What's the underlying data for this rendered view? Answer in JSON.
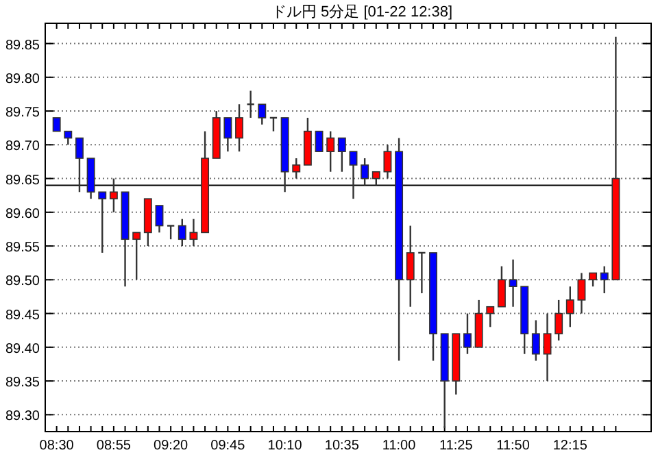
{
  "chart_data": {
    "type": "candlestick",
    "title": "ドル円 5分足 [01-22 12:38]",
    "categories": [
      "08:30",
      null,
      null,
      null,
      null,
      "08:55",
      null,
      null,
      null,
      null,
      "09:20",
      null,
      null,
      null,
      null,
      "09:45",
      null,
      null,
      null,
      null,
      "10:10",
      null,
      null,
      null,
      null,
      "10:35",
      null,
      null,
      null,
      null,
      "11:00",
      null,
      null,
      null,
      null,
      "11:25",
      null,
      null,
      null,
      null,
      "11:50",
      null,
      null,
      null,
      null,
      "12:15",
      null,
      null,
      null,
      null
    ],
    "ohlc": [
      [
        89.74,
        89.74,
        89.72,
        89.72
      ],
      [
        89.72,
        89.72,
        89.7,
        89.71
      ],
      [
        89.71,
        89.71,
        89.63,
        89.68
      ],
      [
        89.68,
        89.68,
        89.62,
        89.63
      ],
      [
        89.63,
        89.63,
        89.54,
        89.62
      ],
      [
        89.62,
        89.65,
        89.6,
        89.63
      ],
      [
        89.63,
        89.63,
        89.49,
        89.56
      ],
      [
        89.56,
        89.57,
        89.5,
        89.57
      ],
      [
        89.57,
        89.62,
        89.55,
        89.62
      ],
      [
        89.61,
        89.61,
        89.57,
        89.58
      ],
      [
        89.58,
        89.58,
        89.56,
        89.58
      ],
      [
        89.58,
        89.59,
        89.55,
        89.56
      ],
      [
        89.56,
        89.59,
        89.55,
        89.57
      ],
      [
        89.57,
        89.72,
        89.57,
        89.68
      ],
      [
        89.68,
        89.75,
        89.68,
        89.74
      ],
      [
        89.74,
        89.74,
        89.69,
        89.71
      ],
      [
        89.71,
        89.76,
        89.69,
        89.74
      ],
      [
        89.76,
        89.78,
        89.74,
        89.76
      ],
      [
        89.76,
        89.76,
        89.73,
        89.74
      ],
      [
        89.74,
        89.74,
        89.72,
        89.74
      ],
      [
        89.74,
        89.74,
        89.63,
        89.66
      ],
      [
        89.66,
        89.68,
        89.65,
        89.67
      ],
      [
        89.67,
        89.74,
        89.67,
        89.72
      ],
      [
        89.72,
        89.72,
        89.69,
        89.69
      ],
      [
        89.69,
        89.72,
        89.66,
        89.71
      ],
      [
        89.71,
        89.71,
        89.66,
        89.69
      ],
      [
        89.69,
        89.69,
        89.62,
        89.67
      ],
      [
        89.67,
        89.68,
        89.64,
        89.65
      ],
      [
        89.65,
        89.66,
        89.64,
        89.66
      ],
      [
        89.66,
        89.7,
        89.65,
        89.69
      ],
      [
        89.69,
        89.71,
        89.38,
        89.5
      ],
      [
        89.5,
        89.58,
        89.46,
        89.54
      ],
      [
        89.54,
        89.54,
        89.48,
        89.54
      ],
      [
        89.54,
        89.54,
        89.38,
        89.42
      ],
      [
        89.42,
        89.42,
        89.28,
        89.35
      ],
      [
        89.35,
        89.42,
        89.33,
        89.42
      ],
      [
        89.42,
        89.45,
        89.39,
        89.4
      ],
      [
        89.4,
        89.47,
        89.4,
        89.45
      ],
      [
        89.45,
        89.46,
        89.43,
        89.46
      ],
      [
        89.46,
        89.52,
        89.46,
        89.5
      ],
      [
        89.5,
        89.53,
        89.46,
        89.49
      ],
      [
        89.49,
        89.49,
        89.39,
        89.42
      ],
      [
        89.42,
        89.44,
        89.38,
        89.39
      ],
      [
        89.39,
        89.45,
        89.35,
        89.42
      ],
      [
        89.42,
        89.47,
        89.41,
        89.45
      ],
      [
        89.45,
        89.49,
        89.43,
        89.47
      ],
      [
        89.47,
        89.51,
        89.45,
        89.5
      ],
      [
        89.5,
        89.51,
        89.49,
        89.51
      ],
      [
        89.51,
        89.52,
        89.48,
        89.5
      ],
      [
        89.5,
        89.86,
        89.5,
        89.65
      ]
    ],
    "colors": [
      "#0000ff",
      "#0000ff",
      "#0000ff",
      "#0000ff",
      "#0000ff",
      "#ff0000",
      "#0000ff",
      "#ff0000",
      "#ff0000",
      "#0000ff",
      "#333333",
      "#0000ff",
      "#ff0000",
      "#ff0000",
      "#ff0000",
      "#0000ff",
      "#ff0000",
      "#333333",
      "#0000ff",
      "#333333",
      "#0000ff",
      "#ff0000",
      "#ff0000",
      "#0000ff",
      "#ff0000",
      "#0000ff",
      "#0000ff",
      "#0000ff",
      "#ff0000",
      "#ff0000",
      "#0000ff",
      "#ff0000",
      "#333333",
      "#0000ff",
      "#0000ff",
      "#ff0000",
      "#0000ff",
      "#ff0000",
      "#ff0000",
      "#ff0000",
      "#0000ff",
      "#0000ff",
      "#0000ff",
      "#ff0000",
      "#ff0000",
      "#ff0000",
      "#ff0000",
      "#ff0000",
      "#0000ff",
      "#ff0000"
    ],
    "ylim": [
      89.275,
      89.88
    ],
    "yticks": [
      {
        "value": 89.3,
        "label": "89.30"
      },
      {
        "value": 89.35,
        "label": "89.35"
      },
      {
        "value": 89.4,
        "label": "89.40"
      },
      {
        "value": 89.45,
        "label": "89.45"
      },
      {
        "value": 89.5,
        "label": "89.50"
      },
      {
        "value": 89.55,
        "label": "89.55"
      },
      {
        "value": 89.6,
        "label": "89.60"
      },
      {
        "value": 89.65,
        "label": "89.65"
      },
      {
        "value": 89.7,
        "label": "89.70"
      },
      {
        "value": 89.75,
        "label": "89.75"
      },
      {
        "value": 89.8,
        "label": "89.80"
      },
      {
        "value": 89.85,
        "label": "89.85"
      }
    ],
    "grid": "y",
    "ref_lines": [
      {
        "axis": "y",
        "value": 89.64,
        "color": "#000000"
      }
    ]
  }
}
